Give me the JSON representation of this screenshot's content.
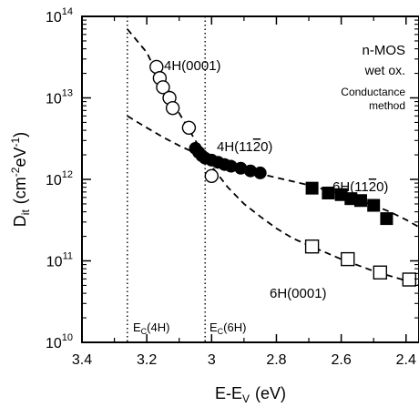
{
  "chart_data": {
    "type": "scatter",
    "xlabel_main": "E-E",
    "xlabel_sub": "V",
    "xlabel_unit": "(eV)",
    "ylabel_main": "D",
    "ylabel_sub": "it",
    "ylabel_unit_pre": "(cm",
    "ylabel_unit_exp1": "-2",
    "ylabel_unit_mid": "eV",
    "ylabel_unit_exp2": "-1",
    "ylabel_unit_post": ")",
    "xlim": [
      3.4,
      2.36
    ],
    "ylim_log10": [
      10,
      14
    ],
    "xticks": [
      3.4,
      3.2,
      3.0,
      2.8,
      2.6,
      2.4
    ],
    "xtick_labels": [
      "3.4",
      "3.2",
      "3",
      "2.8",
      "2.6",
      "2.4"
    ],
    "ytick_exponents": [
      10,
      11,
      12,
      13,
      14
    ],
    "ytick_base": "10",
    "annotations": {
      "device": "n-MOS",
      "oxidation": "wet ox.",
      "method_line1": "Conductance",
      "method_line2": "method"
    },
    "band_edges": [
      {
        "name": "E",
        "sub": "C",
        "suffix": "(4H)",
        "x": 3.26
      },
      {
        "name": "E",
        "sub": "C",
        "suffix": "(6H)",
        "x": 3.02
      }
    ],
    "series": [
      {
        "name": "4H(0001)",
        "marker": "open-circle",
        "points": [
          [
            3.17,
            24000000000000.0
          ],
          [
            3.16,
            17500000000000.0
          ],
          [
            3.15,
            13500000000000.0
          ],
          [
            3.13,
            10000000000000.0
          ],
          [
            3.12,
            7500000000000.0
          ],
          [
            3.07,
            4300000000000.0
          ],
          [
            3.0,
            1100000000000.0
          ]
        ],
        "fit": [
          [
            3.26,
            70000000000000.0
          ],
          [
            3.2,
            36000000000000.0
          ],
          [
            3.15,
            14000000000000.0
          ],
          [
            3.1,
            6500000000000.0
          ],
          [
            3.05,
            3000000000000.0
          ],
          [
            3.0,
            1450000000000.0
          ],
          [
            2.95,
            800000000000.0
          ],
          [
            2.9,
            500000000000.0
          ],
          [
            2.85,
            350000000000.0
          ],
          [
            2.8,
            250000000000.0
          ],
          [
            2.75,
            190000000000.0
          ],
          [
            2.7,
            155000000000.0
          ],
          [
            2.6,
            105000000000.0
          ],
          [
            2.5,
            75000000000.0
          ],
          [
            2.4,
            57000000000.0
          ],
          [
            2.36,
            50000000000.0
          ]
        ]
      },
      {
        "name": "4H(11",
        "name_bar": "2",
        "name_end": "0)",
        "marker": "filled-circle",
        "points": [
          [
            3.05,
            2400000000000.0
          ],
          [
            3.04,
            2150000000000.0
          ],
          [
            3.03,
            1950000000000.0
          ],
          [
            3.02,
            1820000000000.0
          ],
          [
            3.0,
            1720000000000.0
          ],
          [
            2.98,
            1620000000000.0
          ],
          [
            2.96,
            1520000000000.0
          ],
          [
            2.94,
            1450000000000.0
          ],
          [
            2.91,
            1370000000000.0
          ],
          [
            2.88,
            1270000000000.0
          ],
          [
            2.85,
            1200000000000.0
          ]
        ]
      },
      {
        "name": "6H(11",
        "name_bar": "2",
        "name_end": "0)",
        "marker": "filled-square",
        "points": [
          [
            2.69,
            780000000000.0
          ],
          [
            2.64,
            680000000000.0
          ],
          [
            2.6,
            650000000000.0
          ],
          [
            2.57,
            580000000000.0
          ],
          [
            2.54,
            550000000000.0
          ],
          [
            2.5,
            480000000000.0
          ],
          [
            2.46,
            330000000000.0
          ]
        ],
        "fit": [
          [
            3.26,
            6000000000000.0
          ],
          [
            3.2,
            4300000000000.0
          ],
          [
            3.15,
            3300000000000.0
          ],
          [
            3.1,
            2600000000000.0
          ],
          [
            3.05,
            2100000000000.0
          ],
          [
            3.0,
            1750000000000.0
          ],
          [
            2.95,
            1500000000000.0
          ],
          [
            2.9,
            1320000000000.0
          ],
          [
            2.85,
            1170000000000.0
          ],
          [
            2.8,
            1050000000000.0
          ],
          [
            2.7,
            850000000000.0
          ],
          [
            2.6,
            660000000000.0
          ],
          [
            2.5,
            480000000000.0
          ],
          [
            2.45,
            400000000000.0
          ],
          [
            2.4,
            320000000000.0
          ],
          [
            2.36,
            260000000000.0
          ]
        ]
      },
      {
        "name": "6H(0001)",
        "marker": "open-square",
        "points": [
          [
            2.69,
            150000000000.0
          ],
          [
            2.58,
            105000000000.0
          ],
          [
            2.48,
            72000000000.0
          ],
          [
            2.39,
            59000000000.0
          ]
        ]
      }
    ]
  }
}
